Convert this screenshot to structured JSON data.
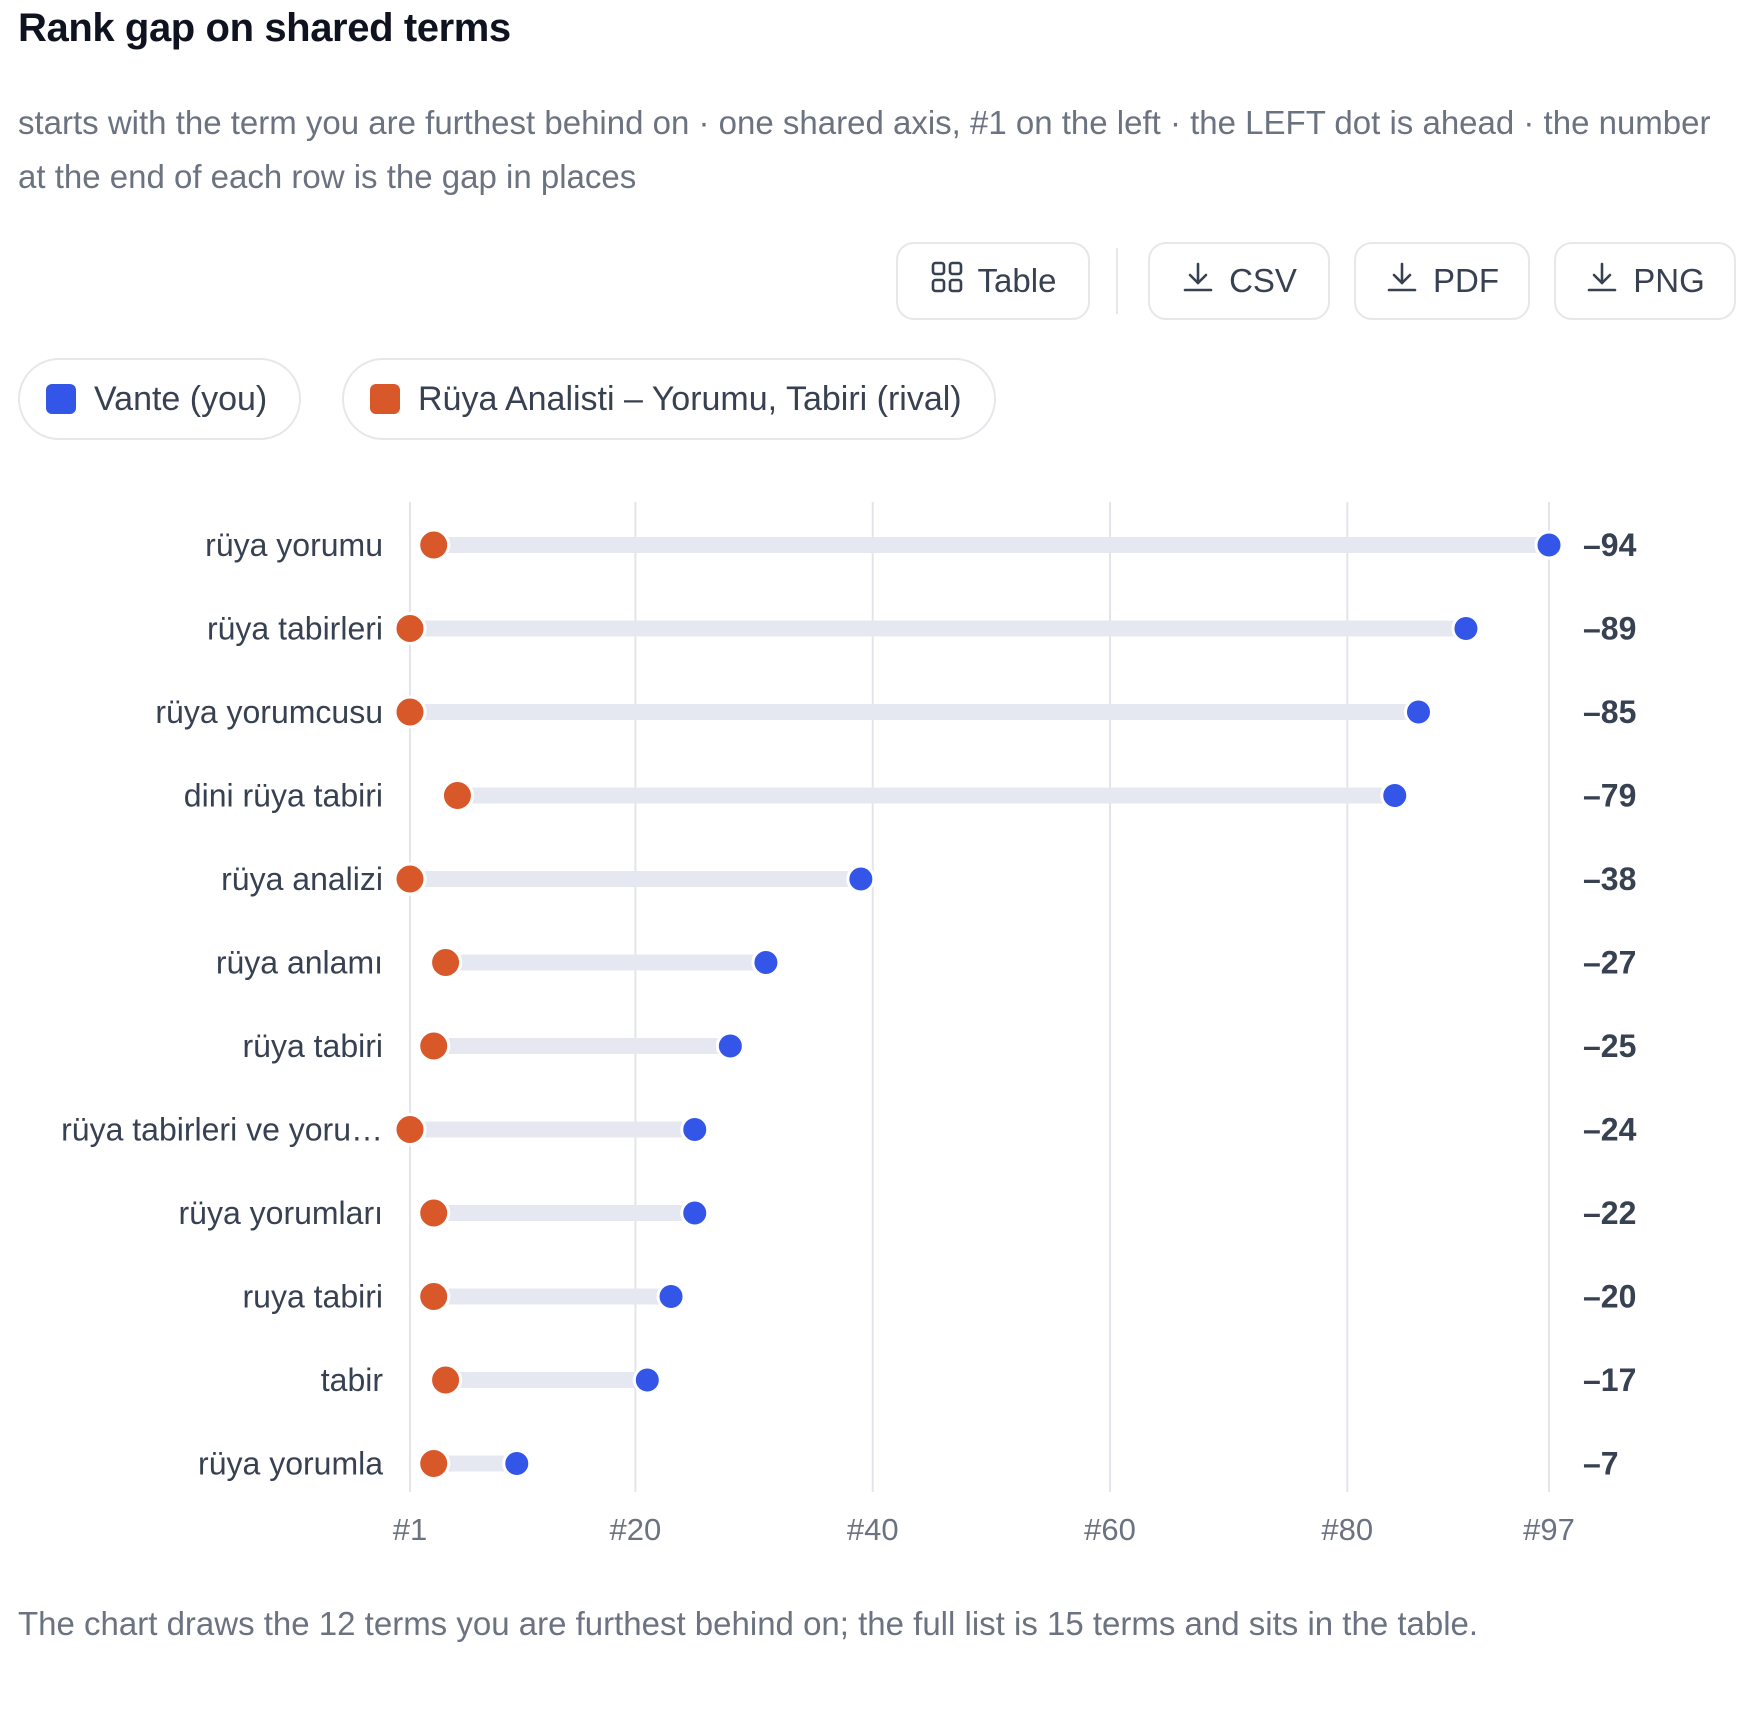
{
  "title": "Rank gap on shared terms",
  "subtitle": "starts with the term you are furthest behind on · one shared axis, #1 on the left · the LEFT dot is ahead · the number at the end of each row is the gap in places",
  "toolbar": {
    "table_label": "Table",
    "csv_label": "CSV",
    "pdf_label": "PDF",
    "png_label": "PNG"
  },
  "legend": {
    "you_label": "Vante (you)",
    "rival_label": "Rüya Analisti – Yorumu, Tabiri (rival)"
  },
  "colors": {
    "you": "#3355e8",
    "rival": "#d9582a",
    "bar": "#e5e8f1",
    "grid": "#e3e5ea"
  },
  "footnote": "The chart draws the 12 terms you are furthest behind on; the full list is 15 terms and sits in the table.",
  "chart_data": {
    "type": "dumbbell",
    "x_ticks": [
      "#1",
      "#20",
      "#40",
      "#60",
      "#80",
      "#97"
    ],
    "x_tick_values": [
      1,
      20,
      40,
      60,
      80,
      97
    ],
    "xlim": [
      1,
      97
    ],
    "grid": true,
    "categories": [
      "rüya yorumu",
      "rüya tabirleri",
      "rüya yorumcusu",
      "dini rüya tabiri",
      "rüya analizi",
      "rüya anlamı",
      "rüya tabiri",
      "rüya tabirleri ve yoru…",
      "rüya yorumları",
      "ruya tabiri",
      "tabir",
      "rüya yorumla"
    ],
    "series": [
      {
        "name": "Vante (you)",
        "values": [
          97,
          90,
          86,
          84,
          39,
          31,
          28,
          25,
          25,
          23,
          21,
          10
        ]
      },
      {
        "name": "Rüya Analisti – Yorumu, Tabiri (rival)",
        "values": [
          3,
          1,
          1,
          5,
          1,
          4,
          3,
          1,
          3,
          3,
          4,
          3
        ]
      }
    ],
    "gap_labels": [
      "–94",
      "–89",
      "–85",
      "–79",
      "–38",
      "–27",
      "–25",
      "–24",
      "–22",
      "–20",
      "–17",
      "–7"
    ]
  }
}
